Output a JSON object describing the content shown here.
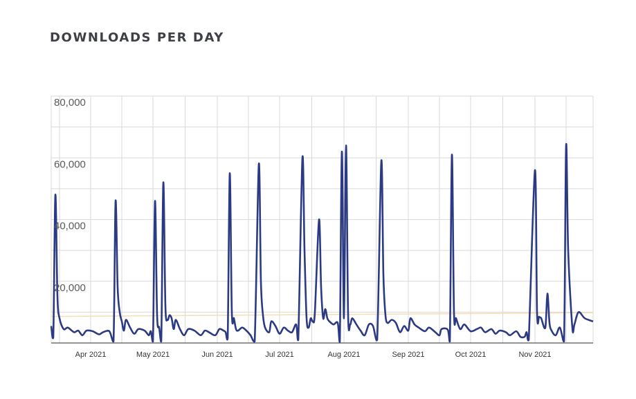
{
  "page": {
    "title": "DOWNLOADS PER DAY"
  },
  "chart_data": {
    "type": "line",
    "title": "DOWNLOADS PER DAY",
    "xlabel": "",
    "ylabel": "",
    "ylim": [
      0,
      80000
    ],
    "yticks": [
      {
        "value": 80000,
        "label": "80,000"
      },
      {
        "value": 60000,
        "label": "60,000"
      },
      {
        "value": 40000,
        "label": "40,000"
      },
      {
        "value": 20000,
        "label": "20,000"
      }
    ],
    "x_range": [
      "2021-03-13",
      "2021-11-29"
    ],
    "xticks": [
      {
        "date": "2021-04-01",
        "label": "Apr 2021"
      },
      {
        "date": "2021-05-01",
        "label": "May 2021"
      },
      {
        "date": "2021-06-01",
        "label": "Jun 2021"
      },
      {
        "date": "2021-07-01",
        "label": "Jul 2021"
      },
      {
        "date": "2021-08-01",
        "label": "Aug 2021"
      },
      {
        "date": "2021-09-01",
        "label": "Sep 2021"
      },
      {
        "date": "2021-10-01",
        "label": "Oct 2021"
      },
      {
        "date": "2021-11-01",
        "label": "Nov 2021"
      }
    ],
    "grid": true,
    "colors": {
      "line": "#2b3a82",
      "trend": "#f5deb3",
      "grid": "#d9d9d9"
    },
    "trend": {
      "start": 8600,
      "end": 9800
    },
    "series": [
      {
        "points": [
          [
            "2021-03-13",
            5500
          ],
          [
            "2021-03-14",
            2000
          ],
          [
            "2021-03-15",
            48000
          ],
          [
            "2021-03-16",
            15000
          ],
          [
            "2021-03-17",
            8000
          ],
          [
            "2021-03-19",
            4500
          ],
          [
            "2021-03-21",
            5000
          ],
          [
            "2021-03-24",
            3500
          ],
          [
            "2021-03-26",
            4000
          ],
          [
            "2021-03-28",
            2500
          ],
          [
            "2021-03-30",
            4000
          ],
          [
            "2021-04-02",
            3800
          ],
          [
            "2021-04-05",
            2800
          ],
          [
            "2021-04-07",
            3500
          ],
          [
            "2021-04-10",
            3800
          ],
          [
            "2021-04-12",
            500
          ],
          [
            "2021-04-13",
            46000
          ],
          [
            "2021-04-14",
            18000
          ],
          [
            "2021-04-15",
            10000
          ],
          [
            "2021-04-16",
            7000
          ],
          [
            "2021-04-17",
            4000
          ],
          [
            "2021-04-18",
            7500
          ],
          [
            "2021-04-20",
            5000
          ],
          [
            "2021-04-22",
            3000
          ],
          [
            "2021-04-24",
            4500
          ],
          [
            "2021-04-27",
            4000
          ],
          [
            "2021-04-29",
            2500
          ],
          [
            "2021-04-30",
            3800
          ],
          [
            "2021-05-01",
            500
          ],
          [
            "2021-05-02",
            46000
          ],
          [
            "2021-05-03",
            9000
          ],
          [
            "2021-05-04",
            5000
          ],
          [
            "2021-05-05",
            500
          ],
          [
            "2021-05-06",
            52000
          ],
          [
            "2021-05-07",
            12000
          ],
          [
            "2021-05-08",
            7500
          ],
          [
            "2021-05-09",
            9000
          ],
          [
            "2021-05-10",
            8000
          ],
          [
            "2021-05-11",
            4500
          ],
          [
            "2021-05-12",
            7500
          ],
          [
            "2021-05-14",
            4500
          ],
          [
            "2021-05-16",
            2500
          ],
          [
            "2021-05-18",
            4500
          ],
          [
            "2021-05-21",
            4000
          ],
          [
            "2021-05-24",
            2500
          ],
          [
            "2021-05-26",
            4000
          ],
          [
            "2021-05-28",
            3500
          ],
          [
            "2021-05-31",
            2500
          ],
          [
            "2021-06-02",
            4500
          ],
          [
            "2021-06-04",
            4000
          ],
          [
            "2021-06-05",
            3500
          ],
          [
            "2021-06-06",
            1500
          ],
          [
            "2021-06-07",
            55000
          ],
          [
            "2021-06-08",
            10000
          ],
          [
            "2021-06-09",
            8000
          ],
          [
            "2021-06-10",
            4500
          ],
          [
            "2021-06-11",
            4000
          ],
          [
            "2021-06-13",
            5000
          ],
          [
            "2021-06-15",
            4000
          ],
          [
            "2021-06-17",
            2500
          ],
          [
            "2021-06-19",
            500
          ],
          [
            "2021-06-21",
            58000
          ],
          [
            "2021-06-22",
            20000
          ],
          [
            "2021-06-23",
            9000
          ],
          [
            "2021-06-24",
            5000
          ],
          [
            "2021-06-26",
            3500
          ],
          [
            "2021-06-27",
            7000
          ],
          [
            "2021-06-29",
            5500
          ],
          [
            "2021-07-01",
            3000
          ],
          [
            "2021-07-03",
            5000
          ],
          [
            "2021-07-05",
            4000
          ],
          [
            "2021-07-07",
            3500
          ],
          [
            "2021-07-09",
            6000
          ],
          [
            "2021-07-10",
            1000
          ],
          [
            "2021-07-12",
            60000
          ],
          [
            "2021-07-13",
            30000
          ],
          [
            "2021-07-14",
            8000
          ],
          [
            "2021-07-15",
            5000
          ],
          [
            "2021-07-16",
            8000
          ],
          [
            "2021-07-17",
            7000
          ],
          [
            "2021-07-18",
            10000
          ],
          [
            "2021-07-20",
            40000
          ],
          [
            "2021-07-21",
            18000
          ],
          [
            "2021-07-22",
            8000
          ],
          [
            "2021-07-23",
            11000
          ],
          [
            "2021-07-24",
            8000
          ],
          [
            "2021-07-25",
            7000
          ],
          [
            "2021-07-27",
            6000
          ],
          [
            "2021-07-29",
            6500
          ],
          [
            "2021-07-30",
            300
          ],
          [
            "2021-07-31",
            62000
          ],
          [
            "2021-08-01",
            8000
          ],
          [
            "2021-08-02",
            64000
          ],
          [
            "2021-08-03",
            9000
          ],
          [
            "2021-08-04",
            6000
          ],
          [
            "2021-08-05",
            8000
          ],
          [
            "2021-08-07",
            6000
          ],
          [
            "2021-08-09",
            4000
          ],
          [
            "2021-08-11",
            2500
          ],
          [
            "2021-08-13",
            6000
          ],
          [
            "2021-08-15",
            5500
          ],
          [
            "2021-08-17",
            1000
          ],
          [
            "2021-08-19",
            59000
          ],
          [
            "2021-08-20",
            22000
          ],
          [
            "2021-08-21",
            9000
          ],
          [
            "2021-08-22",
            6500
          ],
          [
            "2021-08-24",
            7500
          ],
          [
            "2021-08-26",
            6500
          ],
          [
            "2021-08-28",
            3500
          ],
          [
            "2021-08-30",
            5500
          ],
          [
            "2021-09-01",
            4000
          ],
          [
            "2021-09-02",
            8000
          ],
          [
            "2021-09-04",
            6000
          ],
          [
            "2021-09-06",
            5000
          ],
          [
            "2021-09-09",
            3800
          ],
          [
            "2021-09-11",
            5000
          ],
          [
            "2021-09-14",
            3500
          ],
          [
            "2021-09-16",
            2500
          ],
          [
            "2021-09-17",
            4500
          ],
          [
            "2021-09-20",
            4300
          ],
          [
            "2021-09-21",
            500
          ],
          [
            "2021-09-22",
            61000
          ],
          [
            "2021-09-23",
            10000
          ],
          [
            "2021-09-24",
            8000
          ],
          [
            "2021-09-26",
            4500
          ],
          [
            "2021-09-28",
            6000
          ],
          [
            "2021-10-01",
            3800
          ],
          [
            "2021-10-04",
            4500
          ],
          [
            "2021-10-06",
            5000
          ],
          [
            "2021-10-08",
            3500
          ],
          [
            "2021-10-11",
            4500
          ],
          [
            "2021-10-13",
            3000
          ],
          [
            "2021-10-15",
            4000
          ],
          [
            "2021-10-18",
            3500
          ],
          [
            "2021-10-20",
            2500
          ],
          [
            "2021-10-23",
            3800
          ],
          [
            "2021-10-25",
            2000
          ],
          [
            "2021-10-27",
            2000
          ],
          [
            "2021-10-28",
            3500
          ],
          [
            "2021-10-29",
            1000
          ],
          [
            "2021-11-01",
            56000
          ],
          [
            "2021-11-02",
            10000
          ],
          [
            "2021-11-03",
            8500
          ],
          [
            "2021-11-04",
            8000
          ],
          [
            "2021-11-06",
            5000
          ],
          [
            "2021-11-07",
            16000
          ],
          [
            "2021-11-08",
            6500
          ],
          [
            "2021-11-09",
            4000
          ],
          [
            "2021-11-11",
            2500
          ],
          [
            "2021-11-13",
            5000
          ],
          [
            "2021-11-15",
            500
          ],
          [
            "2021-11-16",
            64000
          ],
          [
            "2021-11-17",
            30000
          ],
          [
            "2021-11-19",
            5000
          ],
          [
            "2021-11-20",
            6000
          ],
          [
            "2021-11-22",
            10000
          ],
          [
            "2021-11-25",
            8000
          ],
          [
            "2021-11-29",
            7000
          ]
        ]
      }
    ]
  }
}
